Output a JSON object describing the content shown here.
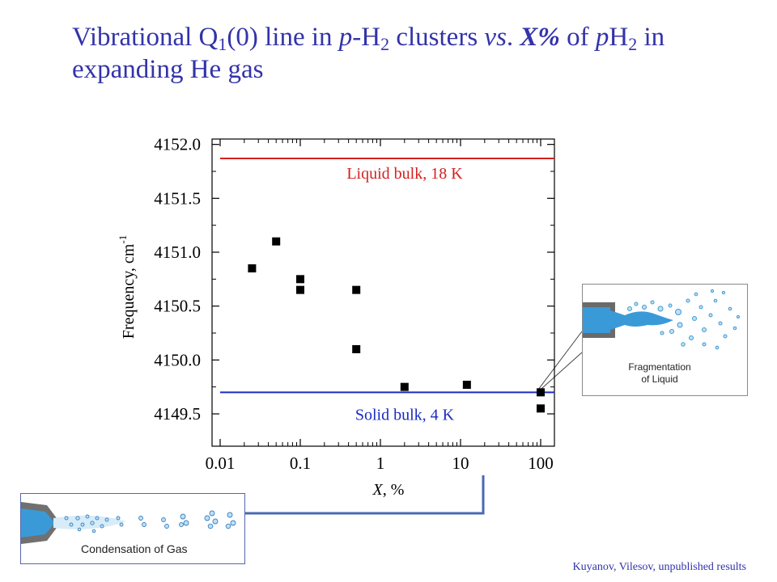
{
  "slide": {
    "title_parts": [
      {
        "t": "Vibrational Q"
      },
      {
        "t": "1",
        "sub": true
      },
      {
        "t": "(0) line in "
      },
      {
        "t": "p",
        "i": true
      },
      {
        "t": "-H"
      },
      {
        "t": "2",
        "sub": true
      },
      {
        "t": " clusters "
      },
      {
        "t": "vs",
        "i": true
      },
      {
        "t": ". "
      },
      {
        "t": "X%",
        "b": true,
        "i": true
      },
      {
        "t": " of "
      },
      {
        "t": "p",
        "i": true
      },
      {
        "t": "H"
      },
      {
        "t": "2",
        "sub": true
      },
      {
        "t": " in expanding He gas"
      }
    ],
    "credit": "Kuyanov, Vilesov, unpublished results"
  },
  "insets": {
    "liquid_label_lines": [
      "Fragmentation",
      "of Liquid"
    ],
    "gas_label": "Condensation of Gas"
  },
  "colors": {
    "title": "#3333aa",
    "liquid_line": "#d42020",
    "solid_line": "#1a2bc0",
    "connector": "#4a6ab0",
    "jet": "#3a9ad8"
  },
  "chart_data": {
    "type": "scatter",
    "x_scale": "log",
    "xlim": [
      0.01,
      100
    ],
    "ylim": [
      4149.2,
      4152.05
    ],
    "x_ticks": [
      0.01,
      0.1,
      1,
      10,
      100
    ],
    "x_tick_labels": [
      "0.01",
      "0.1",
      "1",
      "10",
      "100"
    ],
    "y_ticks": [
      4149.5,
      4150.0,
      4150.5,
      4151.0,
      4151.5,
      4152.0
    ],
    "y_tick_labels": [
      "4149.5",
      "4150.0",
      "4150.5",
      "4151.0",
      "4151.5",
      "4152.0"
    ],
    "xlabel_parts": [
      {
        "t": "X",
        "i": true
      },
      {
        "t": ", %"
      }
    ],
    "ylabel": "Frequency, cm",
    "ylabel_sup": "-1",
    "points": [
      {
        "x": 0.025,
        "y": 4150.85
      },
      {
        "x": 0.05,
        "y": 4151.1
      },
      {
        "x": 0.1,
        "y": 4150.75
      },
      {
        "x": 0.1,
        "y": 4150.65
      },
      {
        "x": 0.5,
        "y": 4150.65
      },
      {
        "x": 0.5,
        "y": 4150.1
      },
      {
        "x": 2,
        "y": 4149.75
      },
      {
        "x": 12,
        "y": 4149.77
      },
      {
        "x": 100,
        "y": 4149.7
      },
      {
        "x": 100,
        "y": 4149.55
      }
    ],
    "reference_lines": [
      {
        "label": "Liquid bulk, 18 K",
        "y": 4151.87
      },
      {
        "label": "Solid bulk, 4 K",
        "y": 4149.7
      }
    ],
    "grid": false
  }
}
